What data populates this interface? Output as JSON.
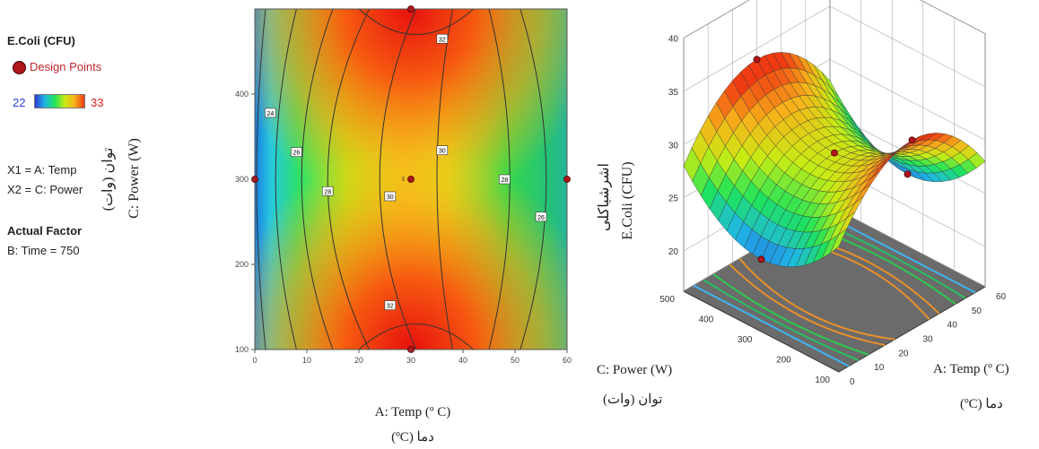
{
  "legend": {
    "response": "E.Coli (CFU)",
    "design_points": "Design Points",
    "scale_min": "22",
    "scale_max": "33",
    "x1": "X1 = A: Temp",
    "x2": "X2 = C: Power",
    "actual_factor_title": "Actual Factor",
    "actual_factor_value": "B: Time = 750"
  },
  "colors": {
    "design_point": "#b0161b",
    "design_point_label": "#c0262b",
    "scale_min_text": "#2b3fd6",
    "scale_max_text": "#e02020"
  },
  "chart_data": [
    {
      "type": "heatmap",
      "subtype": "contour",
      "xlabel": "A: Temp (º C)",
      "xlabel_fa": "دما (ºC)",
      "ylabel": "C: Power (W)",
      "ylabel_fa": "توان (وات)",
      "xlim": [
        0,
        60
      ],
      "ylim": [
        100,
        500
      ],
      "x_ticks": [
        "0",
        "10",
        "20",
        "30",
        "40",
        "50",
        "60"
      ],
      "y_ticks": [
        "100",
        "200",
        "300",
        "400"
      ],
      "contour_labels": [
        {
          "value": "32",
          "x": 36,
          "y": 465
        },
        {
          "value": "24",
          "x": 3,
          "y": 378
        },
        {
          "value": "26",
          "x": 8,
          "y": 332
        },
        {
          "value": "28",
          "x": 14,
          "y": 286
        },
        {
          "value": "30",
          "x": 26,
          "y": 280
        },
        {
          "value": "30",
          "x": 36,
          "y": 334
        },
        {
          "value": "28",
          "x": 48,
          "y": 300
        },
        {
          "value": "26",
          "x": 55,
          "y": 256
        },
        {
          "value": "32",
          "x": 26,
          "y": 152
        }
      ],
      "design_points": [
        {
          "x": 0,
          "y": 300
        },
        {
          "x": 30,
          "y": 300,
          "label": "5"
        },
        {
          "x": 30,
          "y": 100
        },
        {
          "x": 30,
          "y": 500
        },
        {
          "x": 60,
          "y": 300
        }
      ],
      "color_range": [
        22,
        33
      ]
    },
    {
      "type": "area",
      "subtype": "surface3d",
      "xlabel": "A: Temp (º C)",
      "xlabel_fa": "دما (ºC)",
      "ylabel": "C: Power (W)",
      "ylabel_fa": "توان (وات)",
      "zlabel": "E.Coli (CFU)",
      "zlabel_fa": "اشرشیاکلی",
      "xlim": [
        0,
        60
      ],
      "ylim": [
        100,
        500
      ],
      "zlim": [
        20,
        40
      ],
      "x_ticks": [
        "0",
        "10",
        "20",
        "30",
        "40",
        "50",
        "60"
      ],
      "y_ticks": [
        "100",
        "200",
        "300",
        "400",
        "500"
      ],
      "z_ticks": [
        "20",
        "25",
        "30",
        "35",
        "40"
      ]
    }
  ]
}
